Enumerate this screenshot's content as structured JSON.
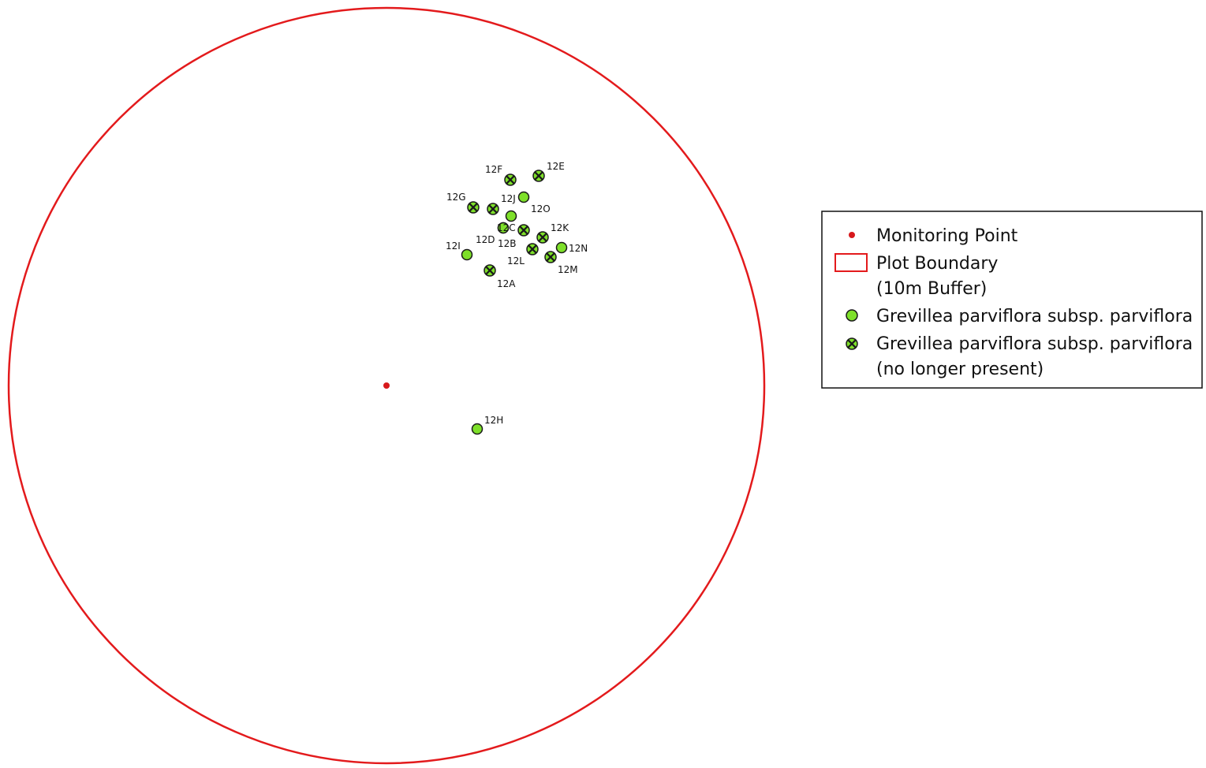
{
  "colors": {
    "boundary": "#e31a1c",
    "monitoring_point": "#d7191c",
    "plant_fill": "#7ee02a",
    "plant_stroke": "#1a1a1a",
    "absent_fill": "#2e7d1e",
    "legend_border": "#111111"
  },
  "map": {
    "monitoring_point": {
      "id": "monitoring-point"
    },
    "plants": [
      {
        "id": "12A",
        "label": "12A",
        "status": "absent"
      },
      {
        "id": "12B",
        "label": "12B",
        "status": "absent"
      },
      {
        "id": "12C",
        "label": "12C",
        "status": "present"
      },
      {
        "id": "12D",
        "label": "12D",
        "status": "present"
      },
      {
        "id": "12E",
        "label": "12E",
        "status": "absent"
      },
      {
        "id": "12F",
        "label": "12F",
        "status": "absent"
      },
      {
        "id": "12G",
        "label": "12G",
        "status": "absent"
      },
      {
        "id": "12H",
        "label": "12H",
        "status": "present"
      },
      {
        "id": "12I",
        "label": "12I",
        "status": "present"
      },
      {
        "id": "12J",
        "label": "12J",
        "status": "absent"
      },
      {
        "id": "12K",
        "label": "12K",
        "status": "absent"
      },
      {
        "id": "12L",
        "label": "12L",
        "status": "absent"
      },
      {
        "id": "12M",
        "label": "12M",
        "status": "absent"
      },
      {
        "id": "12N",
        "label": "12N",
        "status": "present"
      },
      {
        "id": "12O",
        "label": "12O",
        "status": "present"
      }
    ]
  },
  "legend": {
    "items": [
      {
        "symbol": "monitoring-point",
        "lines": [
          "Monitoring Point"
        ]
      },
      {
        "symbol": "plot-boundary",
        "lines": [
          "Plot Boundary",
          "(10m Buffer)"
        ]
      },
      {
        "symbol": "plant-present",
        "lines": [
          "Grevillea parviflora subsp. parviflora"
        ]
      },
      {
        "symbol": "plant-absent",
        "lines": [
          "Grevillea parviflora subsp. parviflora",
          "(no longer present)"
        ]
      }
    ]
  }
}
